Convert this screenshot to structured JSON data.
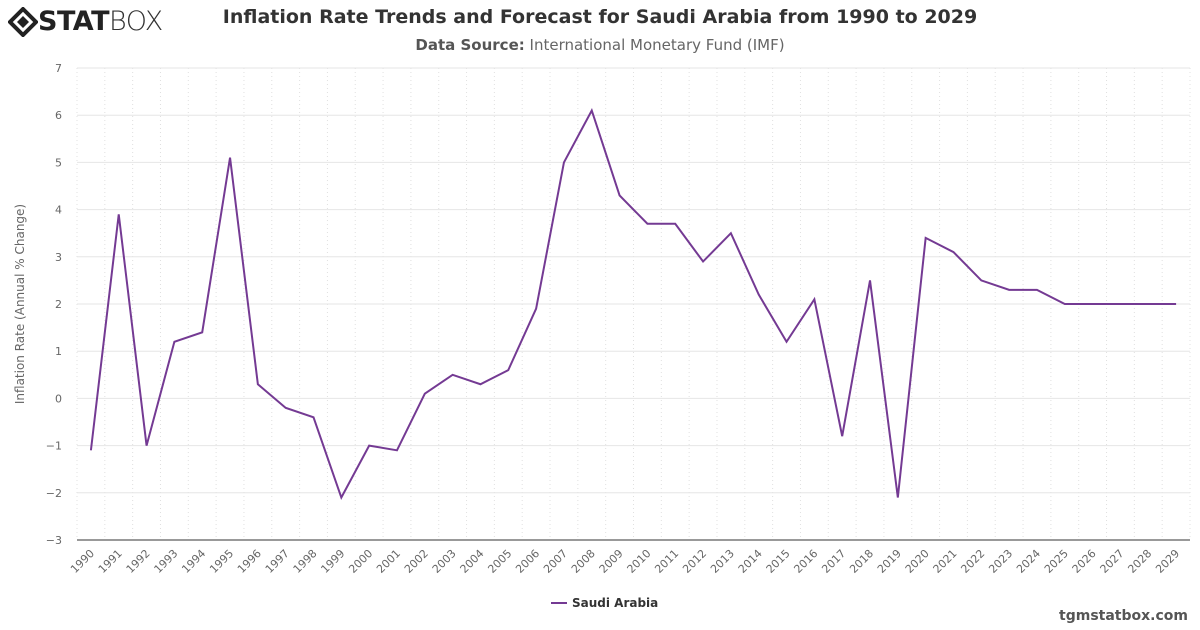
{
  "logo": {
    "text": "STATBOX",
    "bold_part": "STAT",
    "light_part": "BOX"
  },
  "chart_data": {
    "type": "line",
    "title": "Inflation Rate Trends and Forecast for Saudi Arabia from 1990 to 2029",
    "subtitle_label": "Data Source:",
    "subtitle_value": "International Monetary Fund (IMF)",
    "xlabel": "",
    "ylabel": "Inflation Rate (Annual % Change)",
    "ylim": [
      -3,
      7
    ],
    "yticks": [
      -3,
      -2,
      -1,
      0,
      1,
      2,
      3,
      4,
      5,
      6,
      7
    ],
    "grid": true,
    "legend_position": "bottom",
    "categories": [
      "1990",
      "1991",
      "1992",
      "1993",
      "1994",
      "1995",
      "1996",
      "1997",
      "1998",
      "1999",
      "2000",
      "2001",
      "2002",
      "2003",
      "2004",
      "2005",
      "2006",
      "2007",
      "2008",
      "2009",
      "2010",
      "2011",
      "2012",
      "2013",
      "2014",
      "2015",
      "2016",
      "2017",
      "2018",
      "2019",
      "2020",
      "2021",
      "2022",
      "2023",
      "2024",
      "2025",
      "2026",
      "2027",
      "2028",
      "2029"
    ],
    "series": [
      {
        "name": "Saudi Arabia",
        "color": "#743a93",
        "values": [
          -1.1,
          3.9,
          -1.0,
          1.2,
          1.4,
          5.1,
          0.3,
          -0.2,
          -0.4,
          -2.1,
          -1.0,
          -1.1,
          0.1,
          0.5,
          0.3,
          0.6,
          1.9,
          5.0,
          6.1,
          4.3,
          3.7,
          3.7,
          2.9,
          3.5,
          2.2,
          1.2,
          2.1,
          -0.8,
          2.5,
          -2.1,
          3.4,
          3.1,
          2.5,
          2.3,
          2.3,
          2.0,
          2.0,
          2.0,
          2.0,
          2.0
        ]
      }
    ]
  },
  "credit": "tgmstatbox.com"
}
